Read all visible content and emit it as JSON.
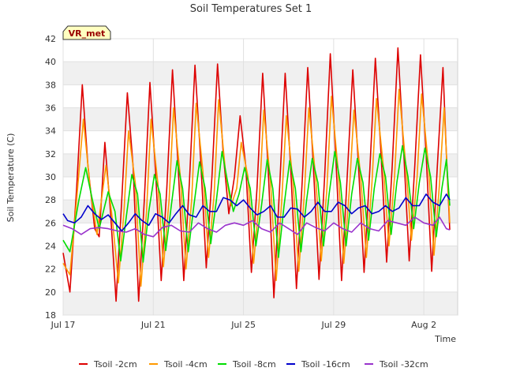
{
  "chart_data": {
    "type": "line",
    "title": "Soil Temperatures Set 1",
    "xlabel": "Time",
    "ylabel": "Soil Temperature (C)",
    "badge": "VR_met",
    "x_ticks": [
      "Jul 17",
      "Jul 21",
      "Jul 25",
      "Jul 29",
      "Aug 2"
    ],
    "y_ticks": [
      18,
      20,
      22,
      24,
      26,
      28,
      30,
      32,
      34,
      36,
      38,
      40,
      42
    ],
    "ylim": [
      18,
      42
    ],
    "xlim_days": [
      "2024-07-17",
      "2024-08-04"
    ],
    "grid": true,
    "legend_position": "bottom",
    "series": [
      {
        "name": "Tsoil -2cm",
        "color": "#dd0000",
        "points": [
          [
            17.0,
            23.4
          ],
          [
            17.3,
            20.0
          ],
          [
            17.6,
            29.0
          ],
          [
            17.85,
            38.0
          ],
          [
            18.1,
            31.0
          ],
          [
            18.4,
            25.5
          ],
          [
            18.6,
            24.8
          ],
          [
            18.85,
            33.0
          ],
          [
            19.1,
            27.0
          ],
          [
            19.35,
            19.2
          ],
          [
            19.6,
            28.0
          ],
          [
            19.85,
            37.3
          ],
          [
            20.1,
            31.0
          ],
          [
            20.35,
            19.2
          ],
          [
            20.6,
            28.0
          ],
          [
            20.85,
            38.2
          ],
          [
            21.1,
            30.5
          ],
          [
            21.35,
            21.0
          ],
          [
            21.6,
            29.0
          ],
          [
            21.85,
            39.3
          ],
          [
            22.1,
            31.0
          ],
          [
            22.35,
            21.0
          ],
          [
            22.6,
            29.5
          ],
          [
            22.85,
            39.7
          ],
          [
            23.1,
            31.5
          ],
          [
            23.35,
            22.1
          ],
          [
            23.6,
            30.0
          ],
          [
            23.85,
            39.8
          ],
          [
            24.1,
            32.0
          ],
          [
            24.35,
            26.8
          ],
          [
            24.6,
            30.0
          ],
          [
            24.85,
            35.3
          ],
          [
            25.1,
            31.0
          ],
          [
            25.35,
            21.7
          ],
          [
            25.6,
            29.0
          ],
          [
            25.85,
            39.0
          ],
          [
            26.1,
            30.5
          ],
          [
            26.35,
            19.5
          ],
          [
            26.6,
            29.0
          ],
          [
            26.85,
            39.0
          ],
          [
            27.1,
            30.5
          ],
          [
            27.35,
            20.3
          ],
          [
            27.6,
            29.5
          ],
          [
            27.85,
            39.5
          ],
          [
            28.1,
            31.0
          ],
          [
            28.35,
            21.1
          ],
          [
            28.6,
            30.0
          ],
          [
            28.85,
            40.7
          ],
          [
            29.1,
            31.5
          ],
          [
            29.35,
            21.0
          ],
          [
            29.6,
            30.0
          ],
          [
            29.85,
            39.3
          ],
          [
            30.1,
            31.0
          ],
          [
            30.35,
            21.7
          ],
          [
            30.6,
            30.5
          ],
          [
            30.85,
            40.3
          ],
          [
            31.1,
            32.0
          ],
          [
            31.35,
            22.6
          ],
          [
            31.6,
            31.0
          ],
          [
            31.85,
            41.2
          ],
          [
            32.1,
            32.5
          ],
          [
            32.35,
            22.7
          ],
          [
            32.6,
            31.0
          ],
          [
            32.85,
            40.6
          ],
          [
            33.1,
            32.0
          ],
          [
            33.35,
            21.8
          ],
          [
            33.6,
            31.0
          ],
          [
            33.85,
            39.5
          ],
          [
            34.0,
            32.0
          ],
          [
            34.15,
            25.4
          ]
        ]
      },
      {
        "name": "Tsoil -4cm",
        "color": "#ff9900",
        "points": [
          [
            17.0,
            22.5
          ],
          [
            17.3,
            21.5
          ],
          [
            17.6,
            28.0
          ],
          [
            17.9,
            35.0
          ],
          [
            18.2,
            29.0
          ],
          [
            18.5,
            25.0
          ],
          [
            18.9,
            31.0
          ],
          [
            19.2,
            26.0
          ],
          [
            19.45,
            20.8
          ],
          [
            19.7,
            27.0
          ],
          [
            19.9,
            34.0
          ],
          [
            20.2,
            29.5
          ],
          [
            20.45,
            20.5
          ],
          [
            20.7,
            27.0
          ],
          [
            20.9,
            35.0
          ],
          [
            21.2,
            29.5
          ],
          [
            21.45,
            22.2
          ],
          [
            21.7,
            28.0
          ],
          [
            21.9,
            36.0
          ],
          [
            22.2,
            30.0
          ],
          [
            22.45,
            22.0
          ],
          [
            22.7,
            28.0
          ],
          [
            22.9,
            36.4
          ],
          [
            23.2,
            30.5
          ],
          [
            23.45,
            23.0
          ],
          [
            23.7,
            28.5
          ],
          [
            23.9,
            36.7
          ],
          [
            24.2,
            30.5
          ],
          [
            24.45,
            27.5
          ],
          [
            24.7,
            29.0
          ],
          [
            24.9,
            33.0
          ],
          [
            25.2,
            30.0
          ],
          [
            25.45,
            22.5
          ],
          [
            25.7,
            28.0
          ],
          [
            25.9,
            35.8
          ],
          [
            26.2,
            29.5
          ],
          [
            26.45,
            21.0
          ],
          [
            26.7,
            28.0
          ],
          [
            26.9,
            35.3
          ],
          [
            27.2,
            29.5
          ],
          [
            27.45,
            21.8
          ],
          [
            27.7,
            28.5
          ],
          [
            27.9,
            36.0
          ],
          [
            28.2,
            30.0
          ],
          [
            28.45,
            22.7
          ],
          [
            28.7,
            29.0
          ],
          [
            28.9,
            37.0
          ],
          [
            29.2,
            30.5
          ],
          [
            29.45,
            22.5
          ],
          [
            29.7,
            29.0
          ],
          [
            29.9,
            35.8
          ],
          [
            30.2,
            30.0
          ],
          [
            30.45,
            23.0
          ],
          [
            30.7,
            29.5
          ],
          [
            30.9,
            36.8
          ],
          [
            31.2,
            31.0
          ],
          [
            31.45,
            24.0
          ],
          [
            31.7,
            30.0
          ],
          [
            31.9,
            37.6
          ],
          [
            32.2,
            31.0
          ],
          [
            32.45,
            24.5
          ],
          [
            32.7,
            30.0
          ],
          [
            32.9,
            37.2
          ],
          [
            33.2,
            31.0
          ],
          [
            33.45,
            23.2
          ],
          [
            33.7,
            29.5
          ],
          [
            33.9,
            36.0
          ],
          [
            34.15,
            26.0
          ]
        ]
      },
      {
        "name": "Tsoil -8cm",
        "color": "#00dd00",
        "points": [
          [
            17.0,
            24.5
          ],
          [
            17.3,
            23.5
          ],
          [
            17.7,
            28.0
          ],
          [
            18.0,
            30.8
          ],
          [
            18.3,
            28.0
          ],
          [
            18.6,
            25.5
          ],
          [
            19.0,
            28.7
          ],
          [
            19.3,
            27.0
          ],
          [
            19.55,
            22.7
          ],
          [
            19.8,
            26.5
          ],
          [
            20.05,
            30.2
          ],
          [
            20.3,
            28.5
          ],
          [
            20.55,
            22.6
          ],
          [
            20.8,
            27.0
          ],
          [
            21.05,
            30.2
          ],
          [
            21.3,
            28.5
          ],
          [
            21.55,
            23.6
          ],
          [
            21.8,
            27.5
          ],
          [
            22.05,
            31.4
          ],
          [
            22.3,
            29.0
          ],
          [
            22.55,
            23.5
          ],
          [
            22.8,
            27.5
          ],
          [
            23.05,
            31.3
          ],
          [
            23.3,
            29.0
          ],
          [
            23.55,
            24.2
          ],
          [
            23.8,
            28.0
          ],
          [
            24.05,
            32.2
          ],
          [
            24.3,
            29.5
          ],
          [
            24.55,
            27.0
          ],
          [
            24.8,
            28.5
          ],
          [
            25.05,
            30.8
          ],
          [
            25.3,
            29.0
          ],
          [
            25.55,
            24.0
          ],
          [
            25.8,
            27.5
          ],
          [
            26.05,
            31.5
          ],
          [
            26.3,
            29.0
          ],
          [
            26.55,
            23.0
          ],
          [
            26.8,
            27.5
          ],
          [
            27.05,
            31.4
          ],
          [
            27.3,
            29.0
          ],
          [
            27.55,
            23.5
          ],
          [
            27.8,
            28.0
          ],
          [
            28.05,
            31.6
          ],
          [
            28.3,
            29.5
          ],
          [
            28.55,
            24.0
          ],
          [
            28.8,
            28.5
          ],
          [
            29.05,
            32.2
          ],
          [
            29.3,
            29.5
          ],
          [
            29.55,
            24.0
          ],
          [
            29.8,
            28.5
          ],
          [
            30.05,
            31.6
          ],
          [
            30.3,
            29.5
          ],
          [
            30.55,
            24.5
          ],
          [
            30.8,
            29.0
          ],
          [
            31.05,
            32.0
          ],
          [
            31.3,
            30.0
          ],
          [
            31.55,
            25.0
          ],
          [
            31.8,
            29.5
          ],
          [
            32.05,
            32.7
          ],
          [
            32.3,
            30.0
          ],
          [
            32.55,
            25.5
          ],
          [
            32.8,
            29.5
          ],
          [
            33.05,
            32.5
          ],
          [
            33.3,
            30.0
          ],
          [
            33.55,
            24.8
          ],
          [
            33.8,
            29.0
          ],
          [
            34.0,
            31.5
          ],
          [
            34.15,
            27.5
          ]
        ]
      },
      {
        "name": "Tsoil -16cm",
        "color": "#0000cc",
        "points": [
          [
            17.0,
            26.8
          ],
          [
            17.2,
            26.2
          ],
          [
            17.5,
            26.0
          ],
          [
            17.8,
            26.5
          ],
          [
            18.1,
            27.5
          ],
          [
            18.4,
            26.8
          ],
          [
            18.7,
            26.3
          ],
          [
            19.0,
            26.7
          ],
          [
            19.3,
            26.0
          ],
          [
            19.6,
            25.3
          ],
          [
            19.9,
            26.0
          ],
          [
            20.2,
            26.8
          ],
          [
            20.5,
            26.2
          ],
          [
            20.8,
            25.8
          ],
          [
            21.1,
            26.8
          ],
          [
            21.4,
            26.5
          ],
          [
            21.7,
            26.0
          ],
          [
            22.0,
            26.8
          ],
          [
            22.3,
            27.5
          ],
          [
            22.6,
            26.7
          ],
          [
            22.9,
            26.5
          ],
          [
            23.2,
            27.5
          ],
          [
            23.5,
            27.0
          ],
          [
            23.8,
            27.0
          ],
          [
            24.1,
            28.2
          ],
          [
            24.4,
            28.0
          ],
          [
            24.7,
            27.5
          ],
          [
            25.0,
            28.0
          ],
          [
            25.3,
            27.3
          ],
          [
            25.6,
            26.7
          ],
          [
            25.9,
            27.0
          ],
          [
            26.2,
            27.5
          ],
          [
            26.5,
            26.5
          ],
          [
            26.8,
            26.5
          ],
          [
            27.1,
            27.3
          ],
          [
            27.4,
            27.2
          ],
          [
            27.7,
            26.5
          ],
          [
            28.0,
            27.0
          ],
          [
            28.3,
            27.8
          ],
          [
            28.6,
            27.0
          ],
          [
            28.9,
            27.0
          ],
          [
            29.2,
            27.8
          ],
          [
            29.5,
            27.5
          ],
          [
            29.8,
            26.8
          ],
          [
            30.1,
            27.3
          ],
          [
            30.4,
            27.5
          ],
          [
            30.7,
            26.8
          ],
          [
            31.0,
            27.0
          ],
          [
            31.3,
            27.5
          ],
          [
            31.6,
            27.0
          ],
          [
            31.9,
            27.3
          ],
          [
            32.2,
            28.2
          ],
          [
            32.5,
            27.5
          ],
          [
            32.8,
            27.5
          ],
          [
            33.1,
            28.5
          ],
          [
            33.4,
            27.8
          ],
          [
            33.7,
            27.5
          ],
          [
            34.0,
            28.5
          ],
          [
            34.15,
            28.0
          ]
        ]
      },
      {
        "name": "Tsoil -32cm",
        "color": "#9933cc",
        "points": [
          [
            17.0,
            25.8
          ],
          [
            17.4,
            25.5
          ],
          [
            17.8,
            25.0
          ],
          [
            18.2,
            25.5
          ],
          [
            18.6,
            25.6
          ],
          [
            19.0,
            25.5
          ],
          [
            19.4,
            25.3
          ],
          [
            19.8,
            25.2
          ],
          [
            20.2,
            25.5
          ],
          [
            20.6,
            25.0
          ],
          [
            21.0,
            24.8
          ],
          [
            21.4,
            25.6
          ],
          [
            21.8,
            25.8
          ],
          [
            22.2,
            25.3
          ],
          [
            22.6,
            25.2
          ],
          [
            23.0,
            26.0
          ],
          [
            23.4,
            25.5
          ],
          [
            23.8,
            25.2
          ],
          [
            24.2,
            25.8
          ],
          [
            24.6,
            26.0
          ],
          [
            25.0,
            25.8
          ],
          [
            25.4,
            26.2
          ],
          [
            25.8,
            25.5
          ],
          [
            26.2,
            25.2
          ],
          [
            26.6,
            26.0
          ],
          [
            27.0,
            25.5
          ],
          [
            27.4,
            25.0
          ],
          [
            27.8,
            26.0
          ],
          [
            28.2,
            25.6
          ],
          [
            28.6,
            25.3
          ],
          [
            29.0,
            26.0
          ],
          [
            29.4,
            25.5
          ],
          [
            29.8,
            25.2
          ],
          [
            30.2,
            26.0
          ],
          [
            30.6,
            25.5
          ],
          [
            31.0,
            25.3
          ],
          [
            31.4,
            26.2
          ],
          [
            31.8,
            26.0
          ],
          [
            32.2,
            25.8
          ],
          [
            32.6,
            26.5
          ],
          [
            33.0,
            26.0
          ],
          [
            33.4,
            25.8
          ],
          [
            33.7,
            26.5
          ],
          [
            34.0,
            25.5
          ],
          [
            34.15,
            25.4
          ]
        ]
      }
    ]
  }
}
